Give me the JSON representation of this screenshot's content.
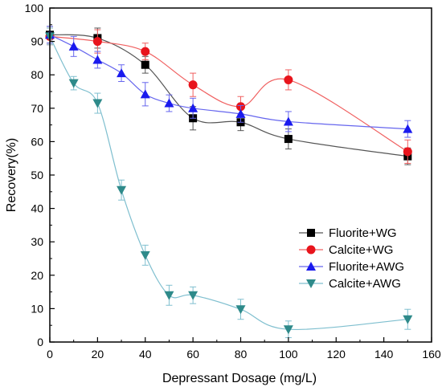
{
  "chart_data": {
    "type": "scatter",
    "xlabel": "Depressant Dosage (mg/L)",
    "ylabel": "Recovery(%)",
    "xlim": [
      0,
      160
    ],
    "ylim": [
      0,
      100
    ],
    "xticks": [
      0,
      20,
      40,
      60,
      80,
      100,
      120,
      140,
      160
    ],
    "yticks": [
      0,
      10,
      20,
      30,
      40,
      50,
      60,
      70,
      80,
      90,
      100
    ],
    "grid": false,
    "legend_position": "bottom-right",
    "series": [
      {
        "name": "Fluorite+WG",
        "marker": "square",
        "marker_color": "#000000",
        "line_color": "#555555",
        "x": [
          0,
          20,
          40,
          60,
          80,
          100,
          150
        ],
        "y": [
          92,
          91,
          83,
          67,
          65.8,
          60.8,
          55.6
        ],
        "err": [
          2.5,
          3,
          2.5,
          3.5,
          2.5,
          3,
          2.5
        ]
      },
      {
        "name": "Calcite+WG",
        "marker": "circle",
        "marker_color": "#e8141c",
        "line_color": "#f06060",
        "x": [
          0,
          20,
          40,
          60,
          80,
          100,
          150
        ],
        "y": [
          91.5,
          90,
          87,
          77,
          70.5,
          78.5,
          57
        ],
        "err": [
          2.5,
          3.5,
          2.5,
          3.5,
          3,
          3,
          3.5
        ]
      },
      {
        "name": "Fluorite+AWG",
        "marker": "triangle-up",
        "marker_color": "#1a1aee",
        "line_color": "#6666ee",
        "x": [
          0,
          10,
          20,
          30,
          40,
          50,
          60,
          80,
          100,
          150
        ],
        "y": [
          92,
          88.5,
          84.5,
          80.5,
          74.2,
          71.5,
          70,
          68.3,
          66,
          63.8
        ],
        "err": [
          2.5,
          3,
          2.5,
          2.5,
          3.5,
          2.5,
          3,
          2.5,
          3,
          2.5
        ]
      },
      {
        "name": "Calcite+AWG",
        "marker": "triangle-down",
        "marker_color": "#2e8a8a",
        "line_color": "#7fbfcf",
        "x": [
          0,
          10,
          20,
          30,
          40,
          50,
          60,
          80,
          100,
          150
        ],
        "y": [
          91.5,
          77.5,
          71.5,
          45.5,
          26,
          14,
          14,
          9.8,
          3.8,
          6.8
        ],
        "err": [
          2.5,
          2,
          3,
          3,
          3,
          3,
          2.5,
          3,
          2.5,
          3
        ]
      }
    ]
  }
}
